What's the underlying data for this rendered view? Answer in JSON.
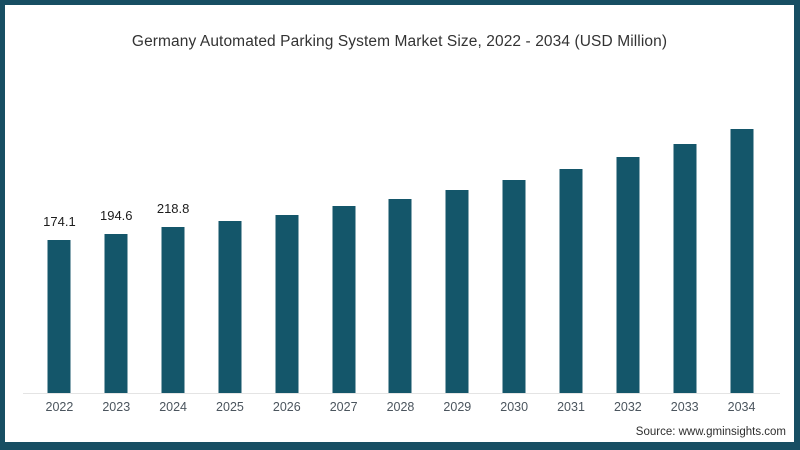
{
  "source_label": "Source: www.gminsights.com",
  "frame": {
    "border_color": "#174e63",
    "background_color": "#ffffff"
  },
  "chart_data": {
    "type": "bar",
    "title": "Germany Automated Parking System Market Size, 2022 - 2034 (USD Million)",
    "xlabel": "",
    "ylabel": "",
    "categories": [
      "2022",
      "2023",
      "2024",
      "2025",
      "2026",
      "2027",
      "2028",
      "2029",
      "2030",
      "2031",
      "2032",
      "2033",
      "2034"
    ],
    "values": [
      174.1,
      194.6,
      218.8,
      238,
      260,
      288,
      314,
      344,
      378,
      415,
      454,
      499,
      547
    ],
    "data_labels": [
      "174.1",
      "194.6",
      "218.8",
      "",
      "",
      "",
      "",
      "",
      "",
      "",
      "",
      "",
      ""
    ],
    "bar_color": "#14566a",
    "ylim": [
      -339,
      669
    ],
    "grid": false,
    "legend": false,
    "axis_line_color": "#e4e4e4"
  }
}
